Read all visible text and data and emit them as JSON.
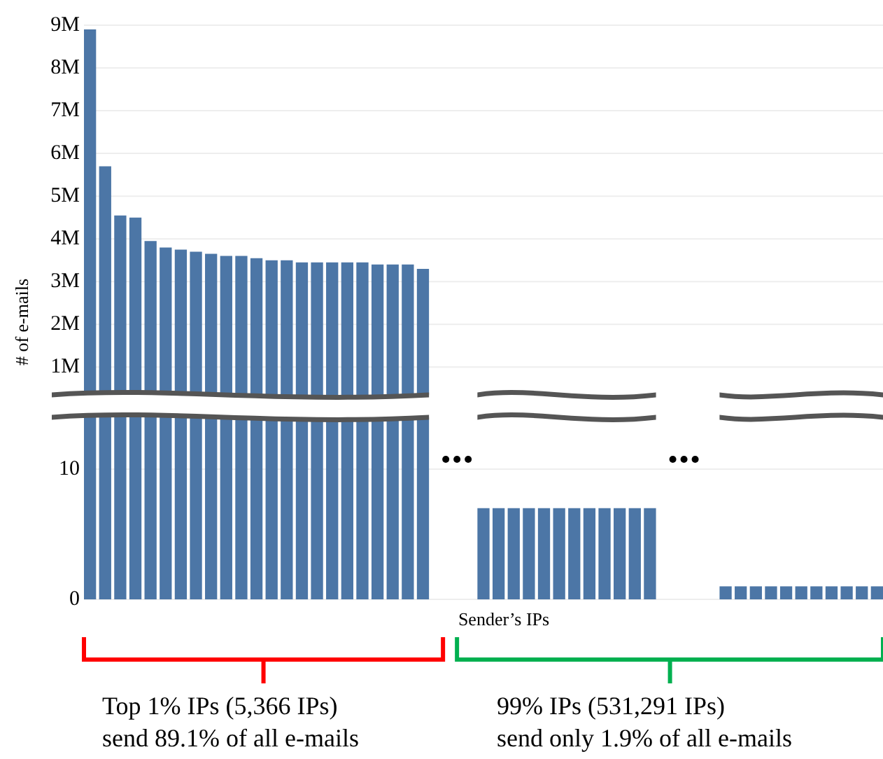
{
  "chart_data": [
    {
      "type": "bar",
      "ylabel": "# of e-mails",
      "categories": [
        null,
        null,
        null,
        null,
        null,
        null,
        null,
        null,
        null,
        null,
        null,
        null,
        null,
        null,
        null,
        null,
        null,
        null,
        null,
        null,
        null,
        null,
        null,
        null,
        null,
        null,
        null,
        null,
        null,
        null,
        null,
        null,
        null,
        null,
        null,
        null,
        null,
        null,
        null,
        null,
        null,
        null,
        null,
        null,
        null,
        null,
        null,
        null,
        null,
        null,
        null,
        null,
        null
      ],
      "values": [
        8900000,
        5700000,
        4550000,
        4500000,
        3950000,
        3800000,
        3750000,
        3700000,
        3650000,
        3600000,
        3600000,
        3550000,
        3500000,
        3500000,
        3450000,
        3450000,
        3450000,
        3450000,
        3450000,
        3400000,
        3400000,
        3400000,
        3300000,
        null,
        null,
        null,
        null,
        null,
        null,
        null,
        null,
        null,
        null,
        null,
        null,
        null,
        null,
        null,
        null,
        null,
        null,
        null,
        null,
        null,
        null,
        null,
        null,
        null,
        null,
        null,
        null,
        null,
        null
      ],
      "color": "#4c76a6",
      "ylim": [
        350000,
        9000000
      ],
      "yticks": [
        {
          "value": 1000000,
          "label": "1M"
        },
        {
          "value": 2000000,
          "label": "2M"
        },
        {
          "value": 3000000,
          "label": "3M"
        },
        {
          "value": 4000000,
          "label": "4M"
        },
        {
          "value": 5000000,
          "label": "5M"
        },
        {
          "value": 6000000,
          "label": "6M"
        },
        {
          "value": 7000000,
          "label": "7M"
        },
        {
          "value": 8000000,
          "label": "8M"
        },
        {
          "value": 9000000,
          "label": "9M"
        }
      ],
      "grid": "y"
    },
    {
      "type": "bar",
      "xlabel": "Sender’s IPs",
      "categories": [
        null,
        null,
        null,
        null,
        null,
        null,
        null,
        null,
        null,
        null,
        null,
        null,
        null,
        null,
        null,
        null,
        null,
        null,
        null,
        null,
        null,
        null,
        null,
        null,
        null,
        null,
        null,
        null,
        null,
        null,
        null,
        null,
        null,
        null,
        null,
        null,
        null,
        null,
        null,
        null,
        null,
        null,
        null,
        null,
        null,
        null,
        null,
        null,
        null,
        null,
        null,
        null,
        null
      ],
      "values": [
        null,
        null,
        null,
        null,
        null,
        null,
        null,
        null,
        null,
        null,
        null,
        null,
        null,
        null,
        null,
        null,
        null,
        null,
        null,
        null,
        null,
        null,
        null,
        null,
        null,
        null,
        7,
        7,
        7,
        7,
        7,
        7,
        7,
        7,
        7,
        7,
        7,
        7,
        null,
        null,
        null,
        null,
        1,
        1,
        1,
        1,
        1,
        1,
        1,
        1,
        1,
        1,
        1
      ],
      "color": "#4c76a6",
      "ylim": [
        0,
        10
      ],
      "yticks": [
        0,
        10
      ],
      "grid": "y",
      "annotations": [
        "Top 1% IPs (5,366 IPs)\nsend 89.1% of all e-mails",
        "99% IPs (531,291 IPs)\nsend only 1.9% of all e-mails"
      ]
    }
  ]
}
